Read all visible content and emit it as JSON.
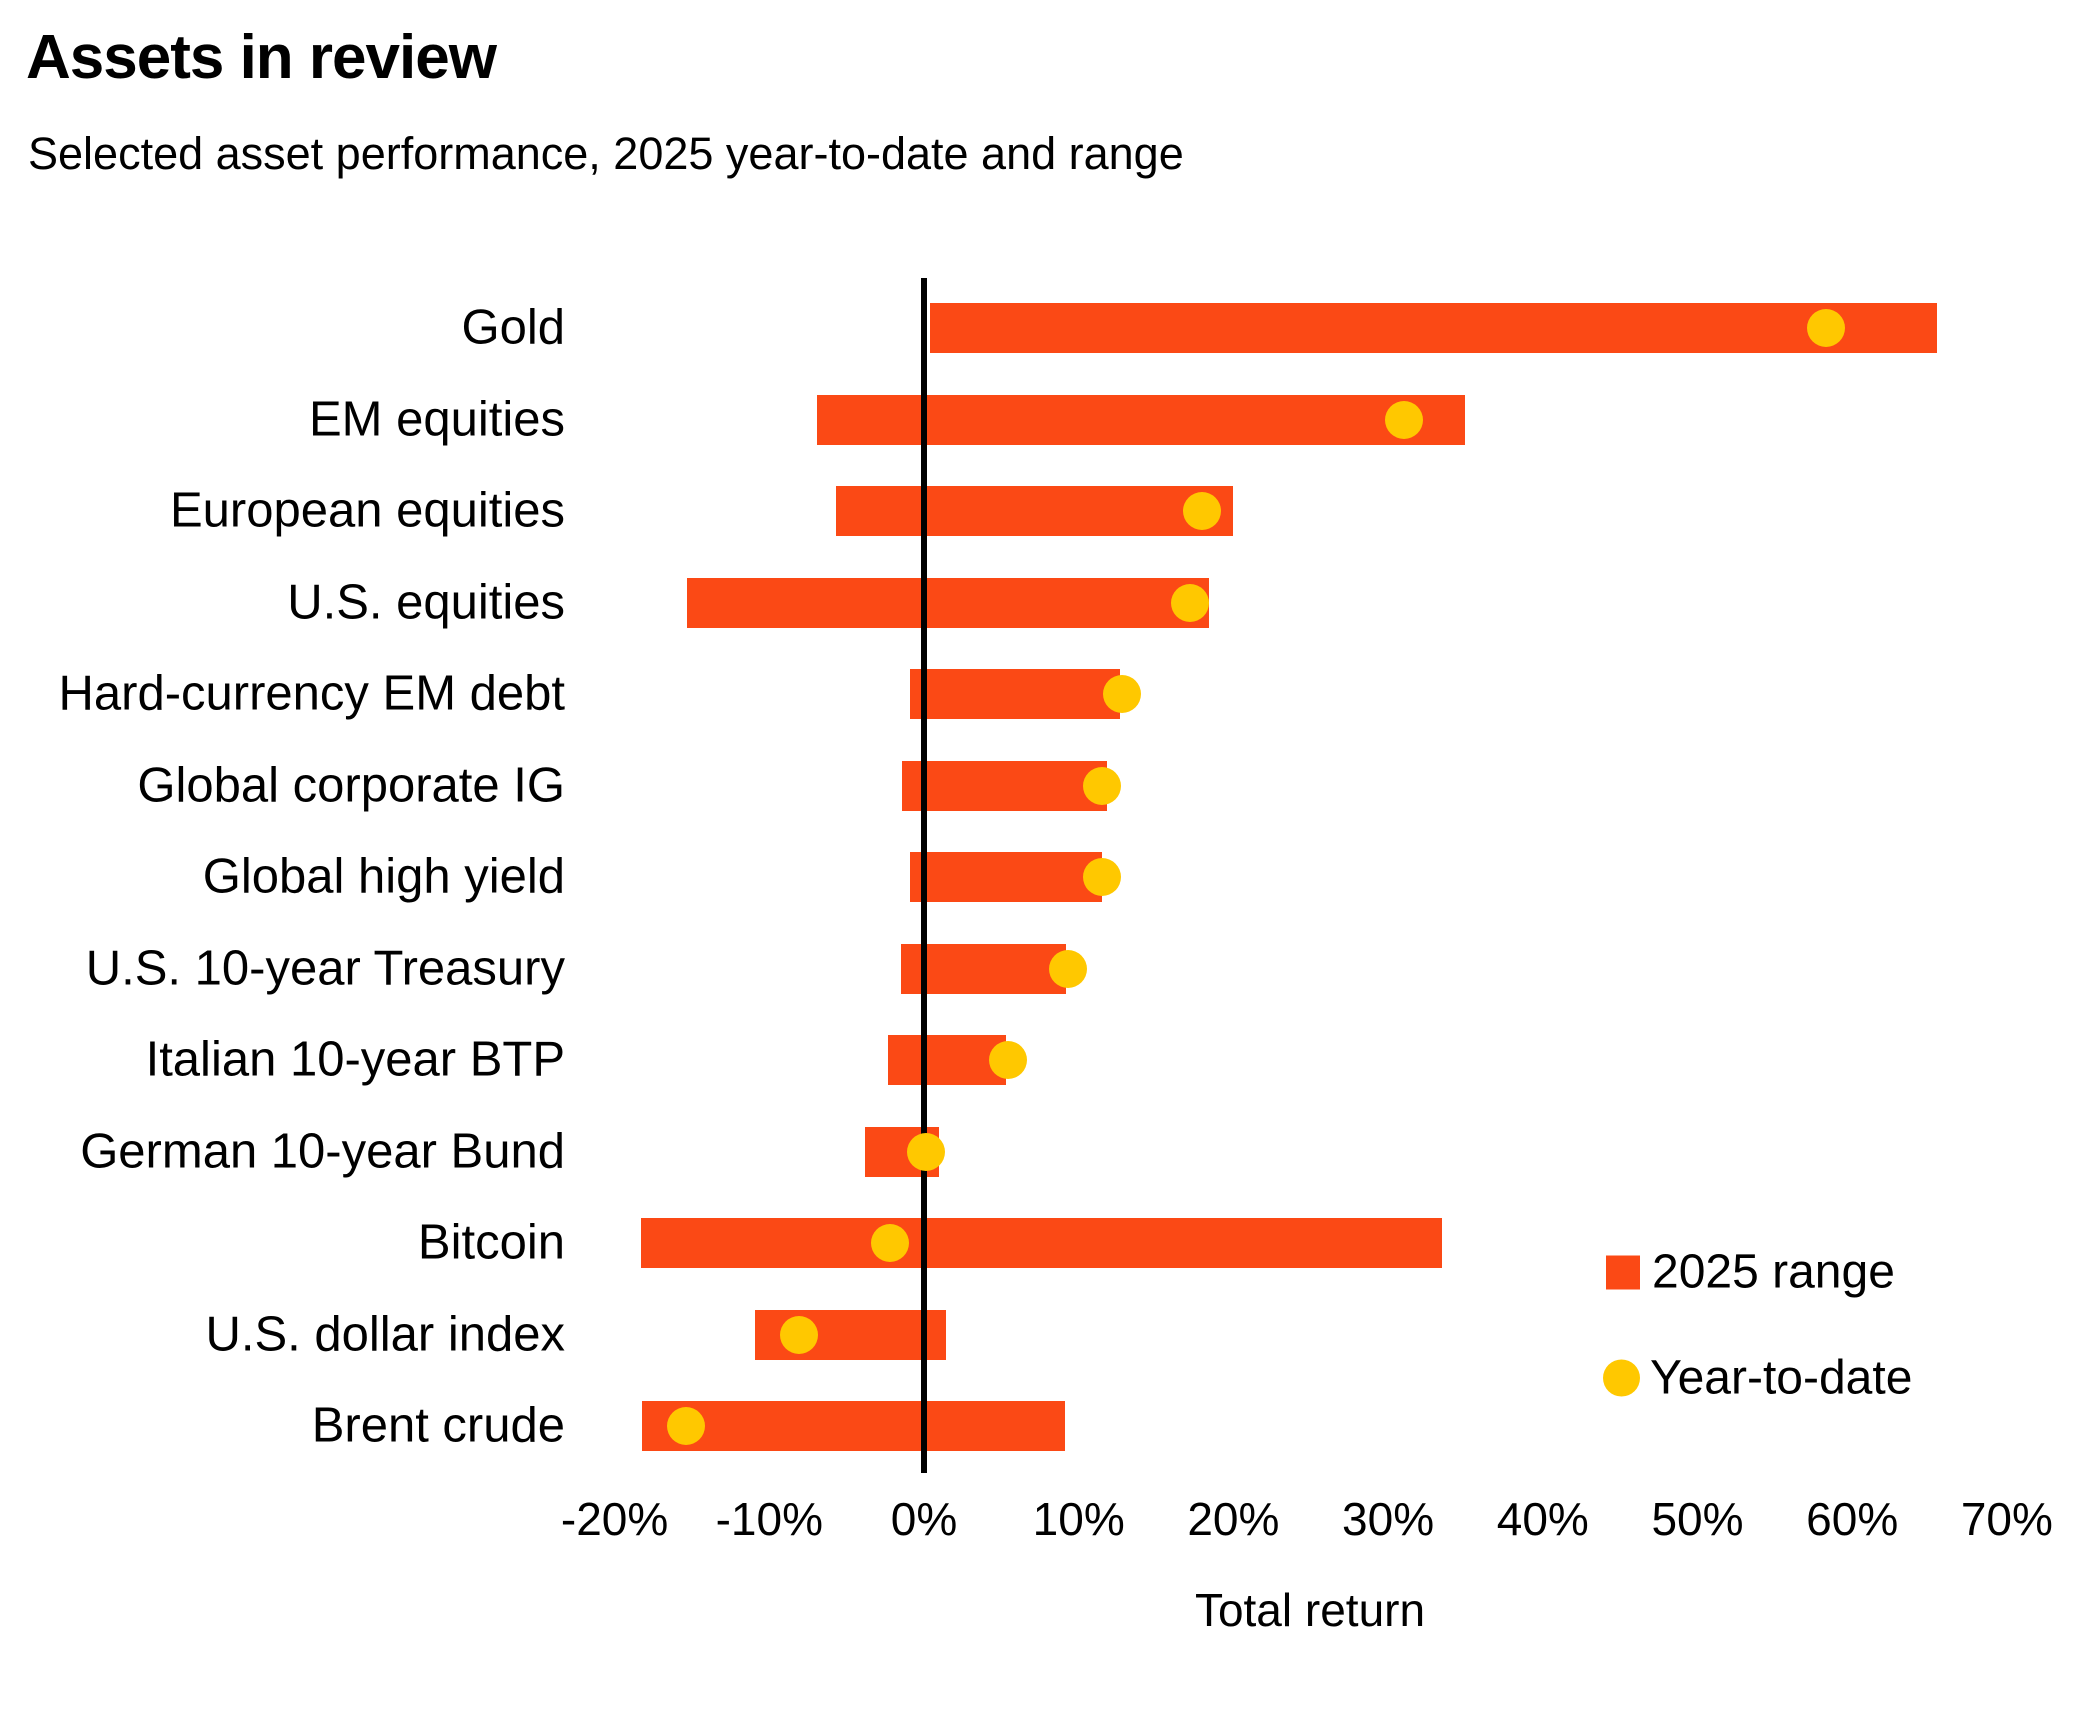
{
  "header": {
    "title": "Assets in review",
    "subtitle": "Selected asset performance, 2025 year-to-date and range"
  },
  "legend": {
    "items": [
      {
        "label": "2025 range",
        "marker": "square",
        "color": "#FB4915"
      },
      {
        "label": "Year-to-date",
        "marker": "circle",
        "color": "#FFC800"
      }
    ]
  },
  "colors": {
    "range_bar": "#FB4915",
    "ytd_dot": "#FFC800",
    "zero_line": "#000000",
    "text": "#000000"
  },
  "chart_data": {
    "type": "bar",
    "orientation": "horizontal",
    "title": "Assets in review",
    "subtitle": "Selected asset performance, 2025 year-to-date and range",
    "xlabel": "Total return",
    "xlim": [
      -20,
      70
    ],
    "grid": false,
    "legend_position": "right-bottom",
    "categories": [
      "Gold",
      "EM equities",
      "European equities",
      "U.S. equities",
      "Hard-currency EM debt",
      "Global corporate IG",
      "Global high yield",
      "U.S. 10-year Treasury",
      "Italian 10-year BTP",
      "German 10-year Bund",
      "Bitcoin",
      "U.S. dollar index",
      "Brent crude"
    ],
    "x_ticks": [
      {
        "v": -20,
        "label": "-20%"
      },
      {
        "v": -10,
        "label": "-10%"
      },
      {
        "v": 0,
        "label": "0%"
      },
      {
        "v": 10,
        "label": "10%"
      },
      {
        "v": 20,
        "label": "20%"
      },
      {
        "v": 30,
        "label": "30%"
      },
      {
        "v": 40,
        "label": "40%"
      },
      {
        "v": 50,
        "label": "50%"
      },
      {
        "v": 60,
        "label": "60%"
      },
      {
        "v": 70,
        "label": "70%"
      }
    ],
    "series": [
      {
        "name": "2025 range",
        "type": "range",
        "unit": "%",
        "low": [
          0.4,
          -6.9,
          -5.7,
          -15.3,
          -0.9,
          -1.4,
          -0.9,
          -1.5,
          -2.3,
          -3.8,
          -18.3,
          -10.9,
          -18.2
        ],
        "high": [
          65.5,
          35.0,
          20.0,
          18.4,
          12.7,
          11.8,
          11.5,
          9.2,
          5.3,
          1.0,
          33.5,
          1.4,
          9.1
        ]
      },
      {
        "name": "Year-to-date",
        "type": "point",
        "unit": "%",
        "values": [
          58.3,
          31.0,
          18.0,
          17.2,
          12.8,
          11.5,
          11.5,
          9.3,
          5.4,
          0.1,
          -2.2,
          -8.1,
          -15.4
        ]
      }
    ]
  }
}
